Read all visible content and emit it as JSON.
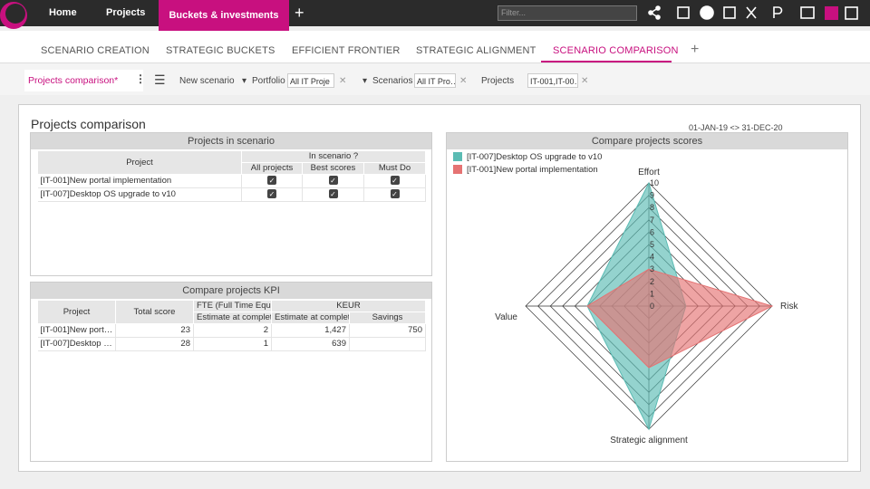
{
  "top_nav": {
    "tabs": [
      "Home",
      "Projects",
      "Buckets & investments"
    ],
    "filter_placeholder": "Filter..."
  },
  "sub_nav": {
    "tabs": [
      "SCENARIO CREATION",
      "STRATEGIC BUCKETS",
      "EFFICIENT FRONTIER",
      "STRATEGIC ALIGNMENT",
      "SCENARIO COMPARISON"
    ]
  },
  "toolbar": {
    "view_tab": "Projects comparison*",
    "new_scenario": "New scenario",
    "portfolio_label": "Portfolio",
    "portfolio_value": "All IT Proje",
    "scenarios_label": "Scenarios",
    "scenarios_value": "All IT Pro…",
    "projects_label": "Projects",
    "projects_value": "IT-001,IT-00…"
  },
  "page": {
    "title": "Projects comparison",
    "date_range": "01-JAN-19 <> 31-DEC-20"
  },
  "scenario_table": {
    "title": "Projects in scenario",
    "group_header": "In scenario ?",
    "columns": [
      "Project",
      "All projects",
      "Best scores",
      "Must Do"
    ],
    "rows": [
      {
        "project": "[IT-001]New portal implementation",
        "checks": [
          true,
          true,
          true
        ]
      },
      {
        "project": "[IT-007]Desktop OS upgrade to v10",
        "checks": [
          true,
          true,
          true
        ]
      }
    ]
  },
  "kpi_table": {
    "title": "Compare projects KPI",
    "columns": [
      "Project",
      "Total score"
    ],
    "groups": [
      {
        "label": "FTE (Full Time Equiv",
        "columns": [
          "Estimate at complet"
        ]
      },
      {
        "label": "KEUR",
        "columns": [
          "Estimate at complet",
          "Savings"
        ]
      }
    ],
    "rows": [
      [
        "[IT-001]New port…",
        "23",
        "2",
        "1,427",
        "750"
      ],
      [
        "[IT-007]Desktop …",
        "28",
        "1",
        "639",
        null
      ]
    ]
  },
  "chart_data": {
    "type": "radar",
    "title": "Compare projects scores",
    "axes": [
      "Effort",
      "Risk",
      "Strategic alignment",
      "Value"
    ],
    "rlim": [
      0,
      10
    ],
    "rticks": [
      0,
      1,
      2,
      3,
      4,
      5,
      6,
      7,
      8,
      9,
      10
    ],
    "series": [
      {
        "name": "[IT-007]Desktop OS upgrade to v10",
        "color": "#5bbcb4",
        "values": [
          10,
          3,
          10,
          5
        ]
      },
      {
        "name": "[IT-001]New portal implementation",
        "color": "#e57373",
        "values": [
          3,
          10,
          5,
          5
        ]
      }
    ]
  }
}
